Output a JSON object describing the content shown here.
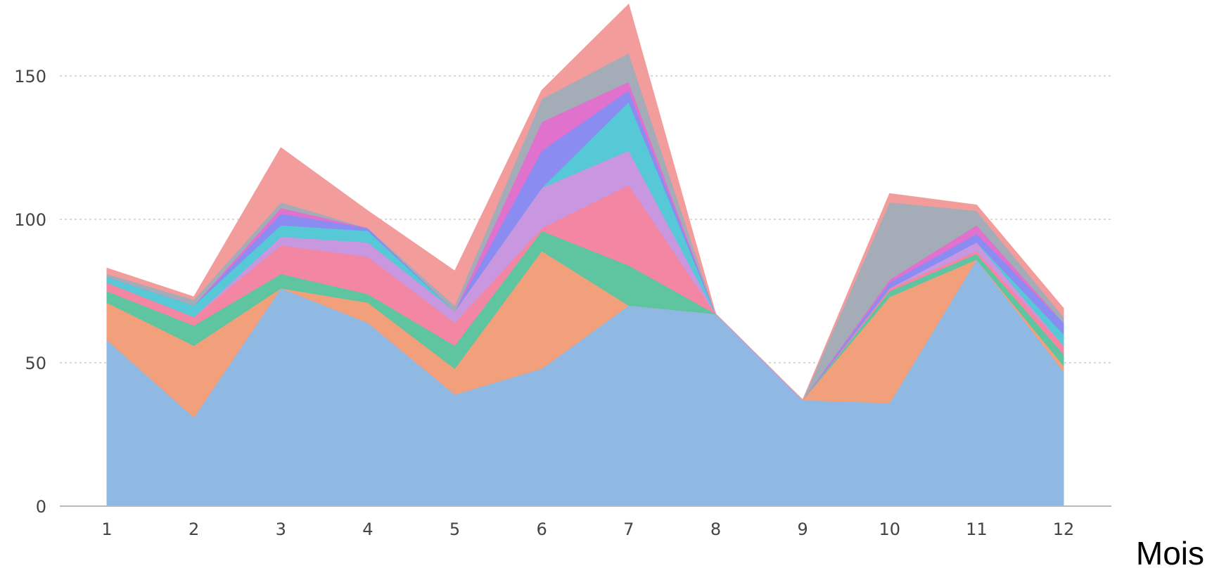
{
  "chart_data": {
    "type": "area",
    "stacked": true,
    "title": "",
    "xlabel": "Mois",
    "ylabel": "",
    "x": [
      1,
      2,
      3,
      4,
      5,
      6,
      7,
      8,
      9,
      10,
      11,
      12
    ],
    "xticks": [
      "1",
      "2",
      "3",
      "4",
      "5",
      "6",
      "7",
      "8",
      "9",
      "10",
      "11",
      "12"
    ],
    "yticks": [
      "0",
      "50",
      "100",
      "150"
    ],
    "ylim": [
      0,
      175
    ],
    "grid": true,
    "legend": "none",
    "series": [
      {
        "color": "#8fb8e3",
        "values": [
          58,
          31,
          76,
          64,
          39,
          48,
          70,
          67,
          37,
          36,
          86,
          47
        ]
      },
      {
        "color": "#f2a07b",
        "values": [
          13,
          25,
          0,
          7,
          9,
          41,
          0,
          0,
          0,
          37,
          0,
          2
        ]
      },
      {
        "color": "#5fc4a0",
        "values": [
          4,
          7,
          5,
          3,
          8,
          7,
          14,
          0,
          0,
          2,
          2,
          4
        ]
      },
      {
        "color": "#f386a3",
        "values": [
          3,
          3,
          10,
          13,
          8,
          1,
          28,
          0,
          0,
          1,
          1,
          3
        ]
      },
      {
        "color": "#c997e0",
        "values": [
          0,
          0,
          3,
          5,
          4,
          14,
          12,
          0,
          0,
          0,
          3,
          0
        ]
      },
      {
        "color": "#56c8d6",
        "values": [
          2,
          4,
          4,
          4,
          0,
          0,
          17,
          0,
          0,
          0,
          0,
          4
        ]
      },
      {
        "color": "#8a8cf2",
        "values": [
          0,
          0,
          4,
          1,
          0,
          13,
          4,
          0,
          0,
          2,
          3,
          4
        ]
      },
      {
        "color": "#e071cc",
        "values": [
          0,
          0,
          2,
          0,
          0,
          10,
          3,
          0,
          0,
          1,
          3,
          0
        ]
      },
      {
        "color": "#a4acb8",
        "values": [
          1,
          2,
          2,
          0,
          2,
          8,
          10,
          0,
          0,
          27,
          5,
          2
        ]
      },
      {
        "color": "#f39c9c",
        "values": [
          2,
          1,
          19,
          6,
          12,
          3,
          17,
          0,
          0,
          3,
          2,
          3
        ]
      }
    ]
  }
}
